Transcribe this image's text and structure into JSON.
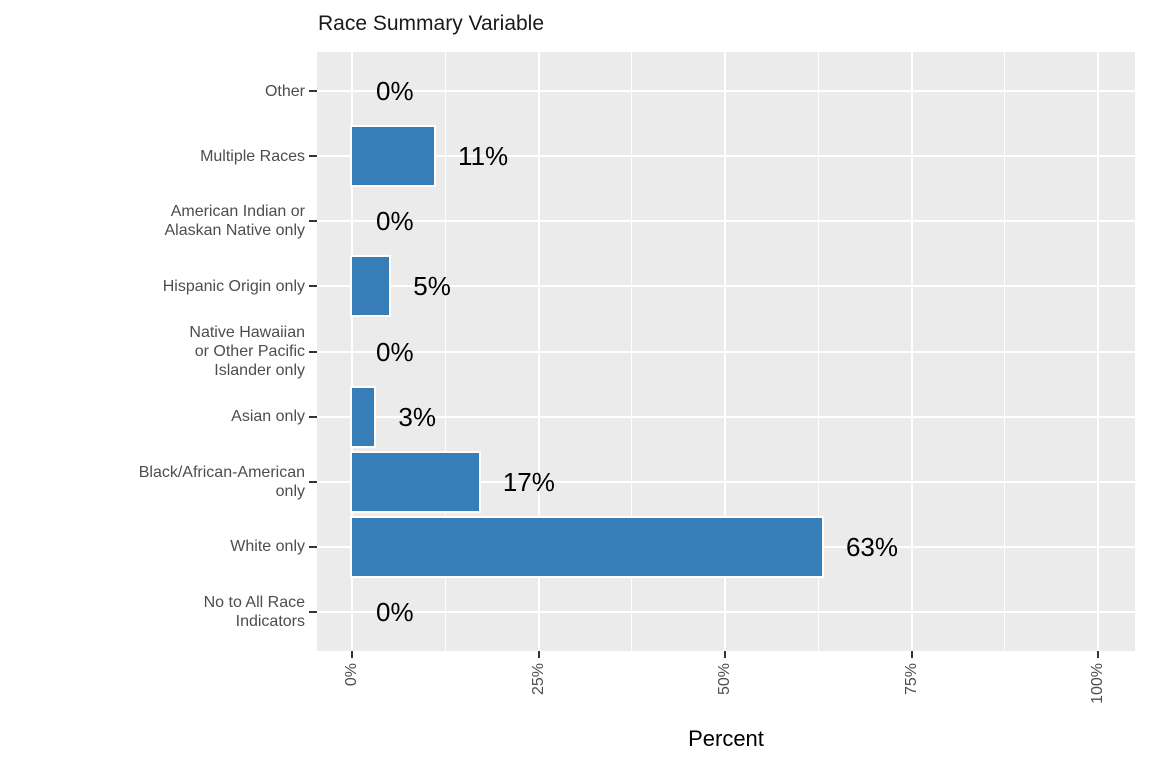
{
  "chart_data": {
    "type": "bar",
    "orientation": "horizontal",
    "title": "Race Summary Variable",
    "xlabel": "Percent",
    "categories": [
      "Other",
      "Multiple Races",
      "American Indian or Alaskan Native only",
      "Hispanic Origin only",
      "Native Hawaiian or Other Pacific Islander only",
      "Asian only",
      "Black/African-American only",
      "White only",
      "No to All Race Indicators"
    ],
    "category_label_lines": [
      [
        "Other"
      ],
      [
        "Multiple Races"
      ],
      [
        "American Indian or",
        "Alaskan Native only"
      ],
      [
        "Hispanic Origin only"
      ],
      [
        "Native Hawaiian",
        "or Other Pacific",
        "Islander only"
      ],
      [
        "Asian only"
      ],
      [
        "Black/African-American",
        "only"
      ],
      [
        "White only"
      ],
      [
        "No to All Race",
        "Indicators"
      ]
    ],
    "values": [
      0,
      11,
      0,
      5,
      0,
      3,
      17,
      63,
      0
    ],
    "value_labels": [
      "0%",
      "11%",
      "0%",
      "5%",
      "0%",
      "3%",
      "17%",
      "63%",
      "0%"
    ],
    "x_tick_labels": [
      "0%",
      "25%",
      "50%",
      "75%",
      "100%"
    ],
    "x_tick_values": [
      0,
      25,
      50,
      75,
      100
    ],
    "x_minor_tick_values": [
      12.5,
      37.5,
      62.5,
      87.5
    ],
    "xlim": [
      0,
      100
    ],
    "grid": true,
    "legend": false,
    "colors": {
      "bar_fill": "#377eb8",
      "bar_stroke": "#ffffff",
      "panel_background": "#ebebeb",
      "gridline": "#ffffff",
      "axis_text": "#4d4d4d",
      "tick_mark": "#333333",
      "title_text": "#1a1a1a",
      "value_label_text": "#000000"
    }
  }
}
